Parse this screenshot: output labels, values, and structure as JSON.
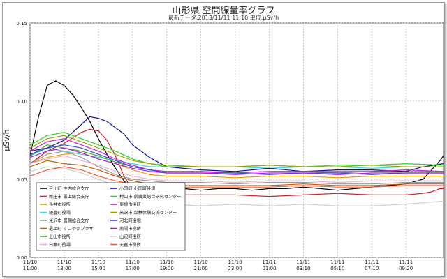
{
  "header": {
    "title": "山形県 空間線量率グラフ",
    "subtitle": "最新データ:2013/11/11 11:10   単位:μSv/h"
  },
  "chart_data": {
    "type": "line",
    "title": "山形県 空間線量率グラフ",
    "ylabel": "μSv/h",
    "xlabel": "",
    "ylim": [
      0,
      0.15
    ],
    "yticks": [
      "0.00",
      "0.05",
      "0.10",
      "0.15"
    ],
    "grid": true,
    "legend_placement": "bottom-left inside plot",
    "x_ticks": [
      {
        "date": "11/10",
        "time": "11:00",
        "h": 0
      },
      {
        "date": "11/10",
        "time": "13:00",
        "h": 2
      },
      {
        "date": "11/10",
        "time": "15:00",
        "h": 4
      },
      {
        "date": "11/10",
        "time": "17:00",
        "h": 6
      },
      {
        "date": "11/10",
        "time": "19:00",
        "h": 8
      },
      {
        "date": "11/10",
        "time": "21:00",
        "h": 10
      },
      {
        "date": "11/10",
        "time": "23:00",
        "h": 12
      },
      {
        "date": "11/11",
        "time": "01:00",
        "h": 14
      },
      {
        "date": "11/11",
        "time": "03:10",
        "h": 16
      },
      {
        "date": "11/11",
        "time": "05:10",
        "h": 18
      },
      {
        "date": "11/11",
        "time": "07:10",
        "h": 20
      },
      {
        "date": "11/11",
        "time": "09:20",
        "h": 22
      }
    ],
    "x_range_hours": [
      0,
      24.2
    ],
    "series": [
      {
        "name": "三川町 庄内総合支庁",
        "color": "#000000",
        "x": [
          0,
          0.5,
          1,
          1.5,
          2,
          2.5,
          3,
          3.5,
          4,
          4.5,
          5,
          5.5,
          6,
          6.5,
          7,
          7.5,
          8,
          9,
          10,
          11,
          12,
          13,
          14,
          15,
          16,
          17,
          18,
          19,
          20,
          21,
          22,
          23,
          23.5,
          24,
          24.2
        ],
        "y": [
          0.065,
          0.09,
          0.11,
          0.113,
          0.11,
          0.104,
          0.096,
          0.087,
          0.076,
          0.066,
          0.057,
          0.049,
          0.044,
          0.043,
          0.043,
          0.044,
          0.044,
          0.044,
          0.043,
          0.044,
          0.044,
          0.043,
          0.044,
          0.044,
          0.045,
          0.044,
          0.043,
          0.044,
          0.045,
          0.046,
          0.047,
          0.05,
          0.056,
          0.062,
          0.065
        ]
      },
      {
        "name": "新庄市 最上総合支庁",
        "color": "#d42020",
        "x": [
          0,
          1,
          2,
          3,
          3.5,
          4,
          4.5,
          5,
          5.5,
          6,
          7,
          8,
          10,
          12,
          14,
          16,
          18,
          20,
          22,
          23,
          23.5,
          24,
          24.2
        ],
        "y": [
          0.06,
          0.068,
          0.073,
          0.08,
          0.082,
          0.081,
          0.075,
          0.065,
          0.052,
          0.043,
          0.04,
          0.04,
          0.04,
          0.04,
          0.039,
          0.04,
          0.041,
          0.04,
          0.04,
          0.041,
          0.042,
          0.044,
          0.044
        ]
      },
      {
        "name": "長井市役所",
        "color": "#e8a000",
        "x": [
          0,
          1,
          2,
          3,
          4,
          5,
          6,
          7,
          8,
          10,
          12,
          14,
          16,
          18,
          20,
          22,
          24.2
        ],
        "y": [
          0.06,
          0.064,
          0.066,
          0.067,
          0.063,
          0.06,
          0.056,
          0.053,
          0.052,
          0.052,
          0.051,
          0.052,
          0.052,
          0.051,
          0.052,
          0.052,
          0.052
        ]
      },
      {
        "name": "飯豊町役場",
        "color": "#40d0e0",
        "x": [
          0,
          1,
          2,
          3,
          4,
          5,
          6,
          7,
          8,
          10,
          12,
          14,
          16,
          18,
          20,
          22,
          24.2
        ],
        "y": [
          0.065,
          0.07,
          0.068,
          0.066,
          0.064,
          0.062,
          0.06,
          0.058,
          0.058,
          0.058,
          0.058,
          0.057,
          0.058,
          0.058,
          0.057,
          0.058,
          0.058
        ]
      },
      {
        "name": "米沢市 置賜総合支庁",
        "color": "#9a9a9a",
        "x": [
          0,
          1,
          2,
          3,
          4,
          5,
          6,
          7,
          8,
          10,
          12,
          14,
          16,
          18,
          20,
          22,
          24.2
        ],
        "y": [
          0.06,
          0.066,
          0.068,
          0.064,
          0.058,
          0.053,
          0.05,
          0.049,
          0.048,
          0.048,
          0.047,
          0.048,
          0.048,
          0.047,
          0.047,
          0.048,
          0.048
        ]
      },
      {
        "name": "最上町 すこやかプラザ",
        "color": "#c06010",
        "x": [
          0,
          1,
          2,
          3,
          4,
          5,
          6,
          7,
          8,
          10,
          12,
          14,
          16,
          18,
          20,
          22,
          24.2
        ],
        "y": [
          0.058,
          0.062,
          0.06,
          0.059,
          0.056,
          0.052,
          0.049,
          0.047,
          0.046,
          0.046,
          0.046,
          0.046,
          0.047,
          0.046,
          0.046,
          0.047,
          0.047
        ]
      },
      {
        "name": "上山市役所",
        "color": "#50a030",
        "x": [
          0,
          1,
          2,
          3,
          4,
          5,
          6,
          7,
          8,
          10,
          12,
          14,
          16,
          18,
          20,
          22,
          24.2
        ],
        "y": [
          0.065,
          0.072,
          0.07,
          0.068,
          0.065,
          0.061,
          0.058,
          0.056,
          0.055,
          0.055,
          0.054,
          0.055,
          0.055,
          0.054,
          0.055,
          0.055,
          0.055
        ]
      },
      {
        "name": "白鷹町役場",
        "color": "#f0b0d0",
        "x": [
          0,
          1,
          2,
          3,
          4,
          5,
          6,
          7,
          8,
          10,
          12,
          14,
          16,
          18,
          20,
          22,
          24.2
        ],
        "y": [
          0.06,
          0.063,
          0.065,
          0.062,
          0.059,
          0.055,
          0.052,
          0.05,
          0.049,
          0.049,
          0.048,
          0.049,
          0.049,
          0.048,
          0.049,
          0.049,
          0.049
        ]
      },
      {
        "name": "小国町 小国町役場",
        "color": "#1010a0",
        "x": [
          0,
          1,
          2,
          3,
          3.5,
          4,
          4.5,
          5,
          5.5,
          6,
          7,
          8,
          10,
          12,
          14,
          16,
          18,
          20,
          22,
          23,
          24.2
        ],
        "y": [
          0.068,
          0.07,
          0.075,
          0.085,
          0.09,
          0.089,
          0.087,
          0.083,
          0.079,
          0.072,
          0.064,
          0.058,
          0.056,
          0.055,
          0.057,
          0.055,
          0.056,
          0.056,
          0.055,
          0.058,
          0.06
        ]
      },
      {
        "name": "村山市 県農業総合研究センター",
        "color": "#30d030",
        "x": [
          0,
          1,
          2,
          3,
          4,
          5,
          6,
          7,
          8,
          10,
          12,
          14,
          16,
          18,
          20,
          22,
          24.2
        ],
        "y": [
          0.072,
          0.078,
          0.08,
          0.076,
          0.072,
          0.068,
          0.063,
          0.06,
          0.058,
          0.058,
          0.058,
          0.059,
          0.058,
          0.059,
          0.059,
          0.06,
          0.059
        ]
      },
      {
        "name": "東根市役所",
        "color": "#d020d0",
        "x": [
          0,
          1,
          2,
          3,
          4,
          5,
          6,
          7,
          8,
          10,
          12,
          14,
          16,
          18,
          20,
          22,
          24.2
        ],
        "y": [
          0.068,
          0.074,
          0.076,
          0.072,
          0.068,
          0.063,
          0.059,
          0.056,
          0.055,
          0.055,
          0.054,
          0.055,
          0.055,
          0.055,
          0.055,
          0.056,
          0.055
        ]
      },
      {
        "name": "米沢市 森林体験交流センター",
        "color": "#a0a000",
        "x": [
          0,
          1,
          2,
          3,
          4,
          5,
          6,
          7,
          8,
          10,
          12,
          14,
          16,
          18,
          20,
          22,
          24.2
        ],
        "y": [
          0.07,
          0.076,
          0.078,
          0.074,
          0.07,
          0.066,
          0.062,
          0.06,
          0.059,
          0.058,
          0.058,
          0.059,
          0.058,
          0.058,
          0.059,
          0.058,
          0.058
        ]
      },
      {
        "name": "河北町役場",
        "color": "#3050d0",
        "x": [
          0,
          1,
          2,
          3,
          4,
          5,
          6,
          7,
          8,
          10,
          12,
          14,
          16,
          18,
          20,
          22,
          24.2
        ],
        "y": [
          0.066,
          0.07,
          0.072,
          0.07,
          0.066,
          0.062,
          0.058,
          0.056,
          0.054,
          0.054,
          0.054,
          0.053,
          0.054,
          0.054,
          0.053,
          0.054,
          0.054
        ]
      },
      {
        "name": "南陽市役所",
        "color": "#a020e0",
        "x": [
          0,
          1,
          2,
          3,
          4,
          5,
          6,
          7,
          8,
          10,
          12,
          14,
          16,
          18,
          20,
          22,
          24.2
        ],
        "y": [
          0.064,
          0.068,
          0.07,
          0.067,
          0.063,
          0.06,
          0.057,
          0.055,
          0.054,
          0.054,
          0.053,
          0.054,
          0.054,
          0.053,
          0.054,
          0.054,
          0.054
        ]
      },
      {
        "name": "山辺町役所",
        "color": "#d0d0d0",
        "x": [
          0,
          1,
          2,
          3,
          4,
          5,
          6,
          7,
          8,
          10,
          12,
          14,
          16,
          18,
          20,
          22,
          23,
          24.2
        ],
        "y": [
          0.055,
          0.058,
          0.057,
          0.054,
          0.05,
          0.046,
          0.042,
          0.037,
          0.034,
          0.033,
          0.034,
          0.033,
          0.034,
          0.033,
          0.033,
          0.034,
          0.035,
          0.036
        ]
      },
      {
        "name": "天童市役所",
        "color": "#f06040",
        "x": [
          0,
          1,
          2,
          3,
          4,
          5,
          6,
          7,
          8,
          10,
          12,
          14,
          16,
          18,
          20,
          22,
          24.2
        ],
        "y": [
          0.052,
          0.056,
          0.058,
          0.056,
          0.052,
          0.049,
          0.047,
          0.046,
          0.045,
          0.045,
          0.045,
          0.045,
          0.046,
          0.045,
          0.045,
          0.046,
          0.046
        ]
      }
    ]
  }
}
